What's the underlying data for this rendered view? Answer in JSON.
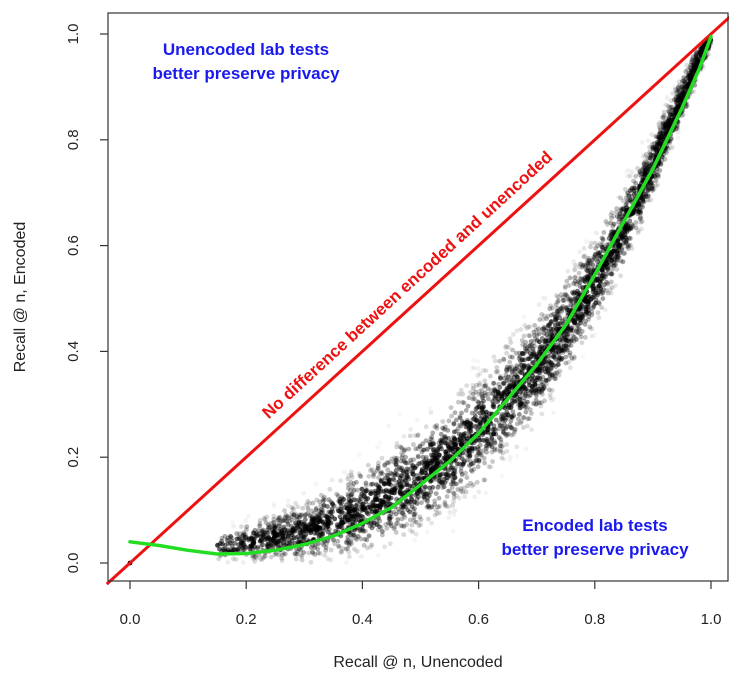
{
  "chart_data": {
    "type": "scatter",
    "xlabel": "Recall @ n, Unencoded",
    "ylabel": "Recall @ n, Encoded",
    "xlim": [
      0.0,
      1.0
    ],
    "ylim": [
      0.0,
      1.0
    ],
    "x_ticks": [
      "0.0",
      "0.2",
      "0.4",
      "0.6",
      "0.8",
      "1.0"
    ],
    "y_ticks": [
      "0.0",
      "0.2",
      "0.4",
      "0.6",
      "0.8",
      "1.0"
    ],
    "grid": false,
    "density_color": "#000000",
    "series": [
      {
        "name": "",
        "kind": "density-scatter",
        "color": "#000000",
        "center_points": [
          {
            "x": 0.15,
            "y": 0.03
          },
          {
            "x": 0.2,
            "y": 0.04
          },
          {
            "x": 0.3,
            "y": 0.06
          },
          {
            "x": 0.4,
            "y": 0.1
          },
          {
            "x": 0.5,
            "y": 0.16
          },
          {
            "x": 0.6,
            "y": 0.25
          },
          {
            "x": 0.7,
            "y": 0.37
          },
          {
            "x": 0.8,
            "y": 0.53
          },
          {
            "x": 0.88,
            "y": 0.7
          },
          {
            "x": 0.95,
            "y": 0.88
          },
          {
            "x": 1.0,
            "y": 1.0
          }
        ]
      },
      {
        "name": "",
        "kind": "smooth-line",
        "color": "#22dd22",
        "points": [
          {
            "x": 0.0,
            "y": 0.04
          },
          {
            "x": 0.05,
            "y": 0.033
          },
          {
            "x": 0.1,
            "y": 0.024
          },
          {
            "x": 0.15,
            "y": 0.017
          },
          {
            "x": 0.2,
            "y": 0.018
          },
          {
            "x": 0.25,
            "y": 0.024
          },
          {
            "x": 0.3,
            "y": 0.035
          },
          {
            "x": 0.35,
            "y": 0.051
          },
          {
            "x": 0.4,
            "y": 0.075
          },
          {
            "x": 0.45,
            "y": 0.105
          },
          {
            "x": 0.5,
            "y": 0.148
          },
          {
            "x": 0.55,
            "y": 0.192
          },
          {
            "x": 0.6,
            "y": 0.245
          },
          {
            "x": 0.65,
            "y": 0.31
          },
          {
            "x": 0.7,
            "y": 0.375
          },
          {
            "x": 0.75,
            "y": 0.45
          },
          {
            "x": 0.8,
            "y": 0.545
          },
          {
            "x": 0.85,
            "y": 0.645
          },
          {
            "x": 0.9,
            "y": 0.745
          },
          {
            "x": 0.95,
            "y": 0.86
          },
          {
            "x": 0.98,
            "y": 0.935
          },
          {
            "x": 1.0,
            "y": 0.995
          }
        ]
      },
      {
        "name": "",
        "kind": "reference-line",
        "color": "#ee1111",
        "points": [
          {
            "x": -0.04,
            "y": -0.04
          },
          {
            "x": 1.04,
            "y": 1.04
          }
        ]
      }
    ],
    "annotations": [
      {
        "text": "Unencoded lab tests",
        "color": "#1a1aee"
      },
      {
        "text": "better preserve privacy",
        "color": "#1a1aee"
      },
      {
        "text": "No difference between encoded and unencoded",
        "color": "#ee1111"
      },
      {
        "text": "Encoded lab tests",
        "color": "#1a1aee"
      },
      {
        "text": "better preserve privacy",
        "color": "#1a1aee"
      }
    ]
  }
}
